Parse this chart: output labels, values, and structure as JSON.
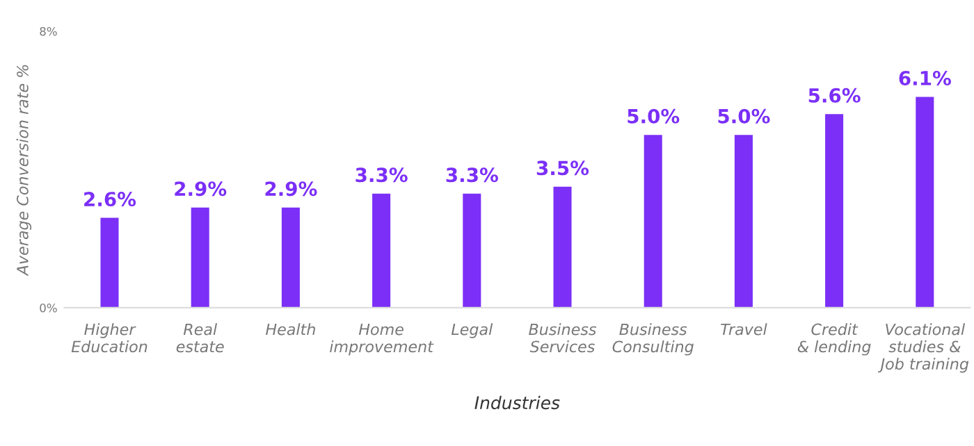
{
  "chart_data": {
    "type": "bar",
    "xlabel": "Industries",
    "ylabel": "Average Conversion rate %",
    "categories": [
      "Higher\nEducation",
      "Real\nestate",
      "Health",
      "Home\nimprovement",
      "Legal",
      "Business\nServices",
      "Business\nConsulting",
      "Travel",
      "Credit\n& lending",
      "Vocational\nstudies &\nJob training"
    ],
    "values": [
      2.6,
      2.9,
      2.9,
      3.3,
      3.3,
      3.5,
      5.0,
      5.0,
      5.6,
      6.1
    ],
    "value_labels": [
      "2.6%",
      "2.9%",
      "2.9%",
      "3.3%",
      "3.3%",
      "3.5%",
      "5.0%",
      "5.0%",
      "5.6%",
      "6.1%"
    ],
    "color": "#7b2ff7",
    "ylim": [
      0,
      8
    ],
    "yticks": [
      {
        "value": 0,
        "label": "0%"
      },
      {
        "value": 8,
        "label": "8%"
      }
    ],
    "grid": false,
    "legend": false
  }
}
